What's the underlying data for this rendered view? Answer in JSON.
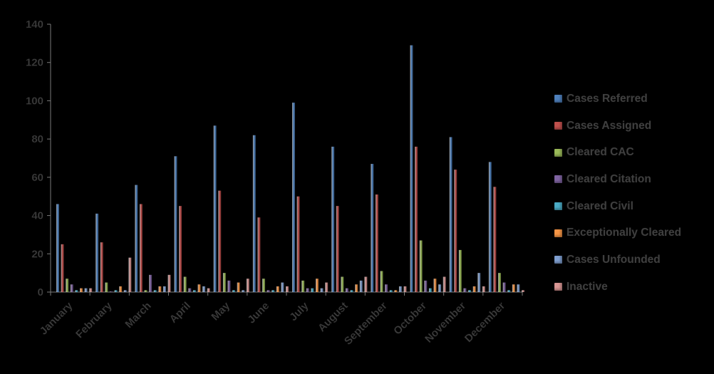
{
  "chart_data": {
    "type": "bar",
    "title": "",
    "xlabel": "",
    "ylabel": "",
    "ylim": [
      0,
      140
    ],
    "yticks": [
      "0",
      "20",
      "40",
      "60",
      "80",
      "100",
      "120",
      "140"
    ],
    "grid": false,
    "legend_position": "right",
    "categories": [
      "January",
      "February",
      "March",
      "April",
      "May",
      "June",
      "July",
      "August",
      "September",
      "October",
      "November",
      "December"
    ],
    "series": [
      {
        "name": "Cases Referred",
        "color": "#4f81bd",
        "values": [
          46,
          41,
          56,
          71,
          87,
          82,
          99,
          76,
          67,
          129,
          81,
          68
        ]
      },
      {
        "name": "Cases Assigned",
        "color": "#c0504d",
        "values": [
          25,
          26,
          46,
          45,
          53,
          39,
          50,
          45,
          51,
          76,
          64,
          55
        ]
      },
      {
        "name": "Cleared CAC",
        "color": "#9bbb59",
        "values": [
          7,
          5,
          1,
          8,
          10,
          7,
          6,
          8,
          11,
          27,
          22,
          10
        ]
      },
      {
        "name": "Cleared Citation",
        "color": "#8064a2",
        "values": [
          4,
          0,
          9,
          2,
          6,
          1,
          2,
          2,
          4,
          6,
          2,
          5
        ]
      },
      {
        "name": "Cleared Civil",
        "color": "#4bacc6",
        "values": [
          1,
          1,
          1,
          1,
          1,
          1,
          2,
          1,
          1,
          2,
          1,
          1
        ]
      },
      {
        "name": "Exceptionally Cleared",
        "color": "#f79646",
        "values": [
          2,
          3,
          3,
          4,
          5,
          3,
          7,
          4,
          1,
          7,
          3,
          4
        ]
      },
      {
        "name": "Cases Unfounded",
        "color": "#7f9fd0",
        "values": [
          2,
          1,
          3,
          3,
          1,
          5,
          2,
          6,
          3,
          4,
          10,
          4
        ]
      },
      {
        "name": "Inactive",
        "color": "#d99694",
        "values": [
          2,
          18,
          9,
          2,
          7,
          3,
          5,
          8,
          3,
          8,
          3,
          1
        ]
      }
    ]
  }
}
